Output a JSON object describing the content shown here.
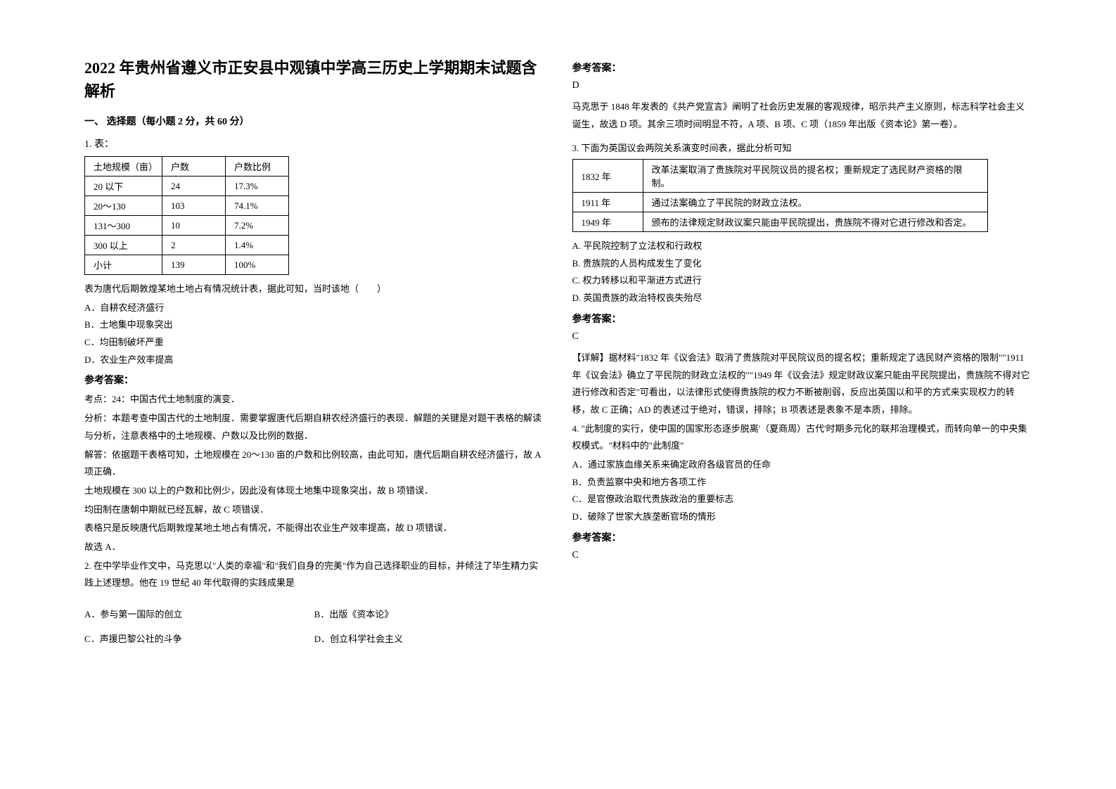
{
  "title": "2022 年贵州省遵义市正安县中观镇中学高三历史上学期期末试题含解析",
  "section_header": "一、 选择题（每小题 2 分，共 60 分）",
  "q1": {
    "num": "1. 表：",
    "table": {
      "headers": [
        "土地规模（亩）",
        "户数",
        "户数比例"
      ],
      "rows": [
        [
          "20 以下",
          "24",
          "17.3%"
        ],
        [
          "20～130",
          "103",
          "74.1%"
        ],
        [
          "131～300",
          "10",
          "7.2%"
        ],
        [
          "300 以上",
          "2",
          "1.4%"
        ],
        [
          "小计",
          "139",
          "100%"
        ]
      ]
    },
    "caption": "表为唐代后期敦煌某地土地占有情况统计表，据此可知，当时该地（　　）",
    "options": [
      "A．自耕农经济盛行",
      "B．土地集中现象突出",
      "C．均田制破坏严重",
      "D．农业生产效率提高"
    ],
    "answer_label": "参考答案：",
    "analysis": [
      "考点：24：中国古代土地制度的演变．",
      "分析：本题考查中国古代的土地制度．需要掌握唐代后期自耕农经济盛行的表现．解题的关键是对题干表格的解读与分析，注意表格中的土地规模、户数以及比例的数据．",
      "解答：依据题干表格可知，土地规模在 20～130 亩的户数和比例较高，由此可知，唐代后期自耕农经济盛行，故 A 项正确．",
      "土地规模在 300 以上的户数和比例少，因此没有体现土地集中现象突出，故 B 项错误．",
      "均田制在唐朝中期就已经瓦解，故 C 项错误．",
      "表格只是反映唐代后期敦煌某地土地占有情况，不能得出农业生产效率提高，故 D 项错误．",
      "故选 A．"
    ]
  },
  "q2": {
    "stem": "2. 在中学毕业作文中，马克思以\"人类的幸福\"和\"我们自身的完美\"作为自己选择职业的目标，并倾注了毕生精力实践上述理想。他在 19 世纪 40 年代取得的实践成果是",
    "options": [
      "A．参与第一国际的创立",
      "B．出版《资本论》",
      "C．声援巴黎公社的斗争",
      "D．创立科学社会主义"
    ],
    "answer_label": "参考答案：",
    "answer_letter": "D",
    "analysis": "马克思于 1848 年发表的《共产党宣言》阐明了社会历史发展的客观规律，昭示共产主义原则，标志科学社会主义诞生，故选 D 项。其余三项时间明显不符，A 项、B 项、C 项（1859 年出版《资本论》第一卷）。"
  },
  "q3": {
    "stem": "3. 下面为英国议会两院关系演变时间表，据此分析可知",
    "table": {
      "rows": [
        [
          "1832 年",
          "改革法案取消了贵族院对平民院议员的提名权；重新规定了选民财产资格的限制。"
        ],
        [
          "1911 年",
          "通过法案确立了平民院的财政立法权。"
        ],
        [
          "1949 年",
          "颁布的法律规定财政议案只能由平民院提出，贵族院不得对它进行修改和否定。"
        ]
      ]
    },
    "options": [
      "A. 平民院控制了立法权和行政权",
      "B. 贵族院的人员构成发生了变化",
      "C. 权力转移以和平渐进方式进行",
      "D. 英国贵族的政治特权丧失殆尽"
    ],
    "answer_label": "参考答案：",
    "answer_letter": "C",
    "analysis": "【详解】据材料\"1832 年《议会法》取消了贵族院对平民院议员的提名权；重新规定了选民财产资格的限制\"\"1911 年《议会法》确立了平民院的财政立法权的\"\"1949 年《议会法》规定财政议案只能由平民院提出，贵族院不得对它进行修改和否定\"可看出，以法律形式使得贵族院的权力不断被削弱，反应出英国以和平的方式来实现权力的转移，故 C 正确；AD 的表述过于绝对，错误，排除；B 项表述是表象不是本质，排除。"
  },
  "q4": {
    "stem": "4. \"此制度的实行，使中国的国家形态逐步脱离'（夏商周）古代'时期多元化的联邦治理模式，而转向单一的中央集权模式。\"材料中的\"此制度\"",
    "options": [
      "A．通过家族血缘关系来确定政府各级官员的任命",
      "B．负责监察中央和地方各项工作",
      "C．是官僚政治取代贵族政治的重要标志",
      "D．破除了世家大族垄断官场的情形"
    ],
    "answer_label": "参考答案：",
    "answer_letter": "C"
  }
}
